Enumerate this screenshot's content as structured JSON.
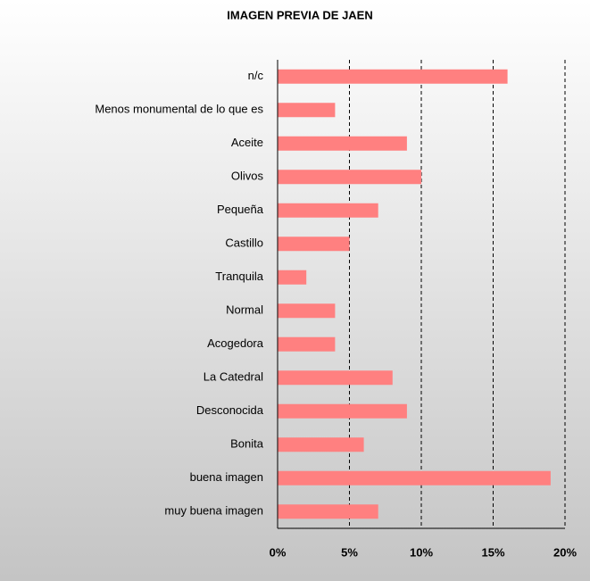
{
  "chart_data": {
    "type": "hbar",
    "title": "IMAGEN PREVIA DE JAEN",
    "categories": [
      "n/c",
      "Menos monumental de lo que es",
      "Aceite",
      "Olivos",
      "Pequeña",
      "Castillo",
      "Tranquila",
      "Normal",
      "Acogedora",
      "La Catedral",
      "Desconocida",
      "Bonita",
      "buena imagen",
      "muy buena imagen"
    ],
    "values": [
      16,
      4,
      9,
      10,
      7,
      5,
      2,
      4,
      4,
      8,
      9,
      6,
      19,
      7
    ],
    "color": "#ff8080",
    "xlim": [
      0,
      20
    ],
    "xticks": [
      {
        "value": 0,
        "label": "0%"
      },
      {
        "value": 5,
        "label": "5%"
      },
      {
        "value": 10,
        "label": "10%"
      },
      {
        "value": 15,
        "label": "15%"
      },
      {
        "value": 20,
        "label": "20%"
      }
    ],
    "grid": true
  }
}
